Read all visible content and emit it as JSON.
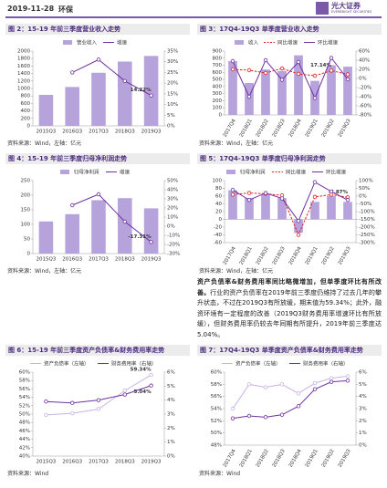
{
  "header": {
    "date": "2019-11-28",
    "sector": "环保",
    "logo": "光大证券",
    "logo_en": "EVERBRIGHT SECURITIES"
  },
  "chart_data": [
    {
      "type": "combo",
      "title": "图 2：15-19 年前三季度营业收入走势",
      "source": "资料来源：Wind，左轴：亿元",
      "categories": [
        "2015Q3",
        "2016Q3",
        "2017Q3",
        "2018Q3",
        "2019Q3"
      ],
      "series": [
        {
          "name": "营业收入",
          "type": "bar",
          "color": "#b7a3db",
          "values": [
            830,
            1040,
            1420,
            1720,
            1870
          ]
        },
        {
          "name": "增速",
          "type": "line",
          "axis": "y2",
          "color": "#7030a0",
          "values": [
            null,
            25,
            31,
            21,
            14.22
          ],
          "value_labels": [
            null,
            null,
            null,
            null,
            "14.22%"
          ]
        }
      ],
      "ylim": [
        0,
        2000
      ],
      "yticks": [
        0,
        200,
        400,
        600,
        800,
        1000,
        1200,
        1400,
        1600,
        1800,
        2000
      ],
      "y2lim": [
        0,
        35
      ],
      "y2ticks": [
        {
          "value": 0,
          "label": "0%"
        },
        {
          "value": 5,
          "label": "5%"
        },
        {
          "value": 10,
          "label": "10%"
        },
        {
          "value": 15,
          "label": "15%"
        },
        {
          "value": 20,
          "label": "20%"
        },
        {
          "value": 25,
          "label": "25%"
        },
        {
          "value": 30,
          "label": "30%"
        },
        {
          "value": 35,
          "label": "35%"
        }
      ]
    },
    {
      "type": "combo",
      "title": "图 3：17Q4-19Q3 单季度营业收入走势",
      "source": "资料来源：Wind，左轴：亿元",
      "categories": [
        "2017Q4",
        "2018Q1",
        "2018Q2",
        "2018Q3",
        "2018Q4",
        "2019Q1",
        "2019Q2",
        "2019Q3"
      ],
      "series": [
        {
          "name": "收入",
          "type": "bar",
          "color": "#b7a3db",
          "values": [
            760,
            450,
            640,
            620,
            840,
            480,
            700,
            680
          ]
        },
        {
          "name": "同比增速",
          "type": "line",
          "axis": "y2",
          "color": "#e02020",
          "line_style": "dashed",
          "values": [
            20,
            18,
            12,
            22,
            10,
            6,
            17.14,
            9
          ],
          "value_labels": [
            null,
            null,
            null,
            null,
            null,
            null,
            "17.14%",
            null
          ]
        },
        {
          "name": "环比增速",
          "type": "line",
          "axis": "y2",
          "color": "#7030a0",
          "values": [
            38,
            -40,
            40,
            -3,
            36,
            -43,
            45,
            -2
          ]
        }
      ],
      "ylim": [
        0,
        900
      ],
      "yticks": [
        0,
        100,
        200,
        300,
        400,
        500,
        600,
        700,
        800,
        900
      ],
      "y2lim": [
        -80,
        60
      ],
      "y2ticks": [
        {
          "value": -80,
          "label": "-80%"
        },
        {
          "value": -60,
          "label": "-60%"
        },
        {
          "value": -40,
          "label": "-40%"
        },
        {
          "value": -20,
          "label": "-20%"
        },
        {
          "value": 0,
          "label": "0%"
        },
        {
          "value": 20,
          "label": "20%"
        },
        {
          "value": 40,
          "label": "40%"
        },
        {
          "value": 60,
          "label": "60%"
        }
      ]
    },
    {
      "type": "combo",
      "title": "图 4：15-19 年前三季度归母净利润走势",
      "source": "资料来源：Wind，左轴：亿元",
      "categories": [
        "2015Q3",
        "2016Q3",
        "2017Q3",
        "2018Q3",
        "2019Q3"
      ],
      "series": [
        {
          "name": "归母净利润",
          "type": "bar",
          "color": "#b7a3db",
          "values": [
            110,
            135,
            183,
            190,
            155
          ]
        },
        {
          "name": "增速",
          "type": "line",
          "axis": "y2",
          "color": "#7030a0",
          "values": [
            null,
            23,
            35,
            5,
            -17.31
          ],
          "value_labels": [
            null,
            null,
            null,
            null,
            "-17.31%"
          ]
        }
      ],
      "ylim": [
        0,
        250
      ],
      "yticks": [
        0,
        50,
        100,
        150,
        200,
        250
      ],
      "y2lim": [
        -30,
        50
      ],
      "y2ticks": [
        {
          "value": -30,
          "label": "-30%"
        },
        {
          "value": -20,
          "label": "-20%"
        },
        {
          "value": -10,
          "label": "-10%"
        },
        {
          "value": 0,
          "label": "0%"
        },
        {
          "value": 10,
          "label": "10%"
        },
        {
          "value": 20,
          "label": "20%"
        },
        {
          "value": 30,
          "label": "30%"
        },
        {
          "value": 40,
          "label": "40%"
        },
        {
          "value": 50,
          "label": "50%"
        }
      ]
    },
    {
      "type": "combo",
      "title": "图 5：17Q4-19Q3 单季度归母净利润走势",
      "source": "资料来源：Wind，左轴：亿元",
      "categories": [
        "2017Q4",
        "2018Q1",
        "2018Q2",
        "2018Q3",
        "2018Q4",
        "2019Q1",
        "2019Q2",
        "2019Q3"
      ],
      "series": [
        {
          "name": "归母净利润",
          "type": "bar",
          "color": "#b7a3db",
          "values": [
            75,
            55,
            65,
            55,
            -35,
            45,
            60,
            45
          ]
        },
        {
          "name": "同比增速",
          "type": "line",
          "axis": "y2",
          "color": "#e02020",
          "line_style": "dashed",
          "values": [
            10,
            20,
            15,
            5,
            -250,
            -5,
            10,
            -7.87
          ],
          "value_labels": [
            null,
            null,
            null,
            null,
            null,
            null,
            null,
            "-7.87%"
          ]
        },
        {
          "name": "环比增速",
          "type": "line",
          "axis": "y2",
          "color": "#7030a0",
          "values": [
            40,
            -25,
            20,
            -15,
            -160,
            90,
            30,
            -25
          ]
        }
      ],
      "ylim": [
        -60,
        100
      ],
      "yticks": [
        -60,
        -40,
        -20,
        0,
        20,
        40,
        60,
        80,
        100
      ],
      "y2lim": [
        -300,
        100
      ],
      "y2ticks": [
        {
          "value": -300,
          "label": "-300%"
        },
        {
          "value": -250,
          "label": "-250%"
        },
        {
          "value": -200,
          "label": "-200%"
        },
        {
          "value": -150,
          "label": "-150%"
        },
        {
          "value": -100,
          "label": "-100%"
        },
        {
          "value": -50,
          "label": "-50%"
        },
        {
          "value": 0,
          "label": "0%"
        },
        {
          "value": 50,
          "label": "50%"
        },
        {
          "value": 100,
          "label": "100%"
        }
      ]
    },
    {
      "type": "combo",
      "title": "图 6：15-19 年前三季度资产负债率&财务费用率走势",
      "source": "资料来源：Wind",
      "categories": [
        "2015Q3",
        "2016Q3",
        "2017Q3",
        "2018Q3",
        "2019Q3"
      ],
      "series": [
        {
          "name": "资产负债率（左轴）",
          "type": "line",
          "color": "#c9b3e6",
          "values": [
            49.8,
            50.2,
            51.2,
            55.6,
            59.34
          ],
          "value_labels": [
            null,
            null,
            null,
            null,
            "59.34%"
          ]
        },
        {
          "name": "财务费用率（右轴）",
          "type": "line",
          "axis": "y2",
          "color": "#7030a0",
          "values": [
            3.9,
            3.8,
            4.0,
            4.4,
            5.04
          ],
          "value_labels": [
            null,
            null,
            null,
            null,
            "5.04%"
          ]
        }
      ],
      "ylim": [
        40,
        60
      ],
      "yticks": [
        {
          "value": 40,
          "label": "40%"
        },
        {
          "value": 42,
          "label": "42%"
        },
        {
          "value": 44,
          "label": "44%"
        },
        {
          "value": 46,
          "label": "46%"
        },
        {
          "value": 48,
          "label": "48%"
        },
        {
          "value": 50,
          "label": "50%"
        },
        {
          "value": 52,
          "label": "52%"
        },
        {
          "value": 54,
          "label": "54%"
        },
        {
          "value": 56,
          "label": "56%"
        },
        {
          "value": 58,
          "label": "58%"
        },
        {
          "value": 60,
          "label": "60%"
        }
      ],
      "y2lim": [
        0,
        6
      ],
      "y2ticks": [
        {
          "value": 0,
          "label": "0%"
        },
        {
          "value": 1,
          "label": "1%"
        },
        {
          "value": 2,
          "label": "2%"
        },
        {
          "value": 3,
          "label": "3%"
        },
        {
          "value": 4,
          "label": "4%"
        },
        {
          "value": 5,
          "label": "5%"
        },
        {
          "value": 6,
          "label": "6%"
        }
      ]
    },
    {
      "type": "combo",
      "title": "图 7：17Q4-19Q3 单季度资产负债率&财务费用率走势",
      "source": "资料来源：Wind",
      "categories": [
        "2017Q4",
        "2018Q1",
        "2018Q2",
        "2018Q3",
        "2018Q4",
        "2019Q1",
        "2019Q2",
        "2019Q3"
      ],
      "series": [
        {
          "name": "资产负债率（左轴）",
          "type": "line",
          "color": "#c9b3e6",
          "values": [
            54,
            58,
            57.5,
            58,
            56.5,
            58.2,
            59,
            59.34
          ]
        },
        {
          "name": "财务费用率（右轴）",
          "type": "line",
          "axis": "y2",
          "color": "#7030a0",
          "values": [
            2.2,
            2.4,
            2.3,
            2.5,
            3.2,
            4.6,
            5.2,
            5.3
          ]
        }
      ],
      "ylim": [
        48,
        60
      ],
      "yticks": [
        {
          "value": 48,
          "label": "48%"
        },
        {
          "value": 50,
          "label": "50%"
        },
        {
          "value": 52,
          "label": "52%"
        },
        {
          "value": 54,
          "label": "54%"
        },
        {
          "value": 56,
          "label": "56%"
        },
        {
          "value": 58,
          "label": "58%"
        },
        {
          "value": 60,
          "label": "60%"
        }
      ],
      "y2lim": [
        0,
        6
      ],
      "y2ticks": [
        {
          "value": 0,
          "label": "0%"
        },
        {
          "value": 1,
          "label": "1%"
        },
        {
          "value": 2,
          "label": "2%"
        },
        {
          "value": 3,
          "label": "3%"
        },
        {
          "value": 4,
          "label": "4%"
        },
        {
          "value": 5,
          "label": "5%"
        },
        {
          "value": 6,
          "label": "6%"
        }
      ]
    }
  ],
  "paragraph": {
    "lead": "资产负债率&财务费用率同比略微增加，但单季度环比有所改善。",
    "body": "行业的资产负债率在2019年前三季度仍维持了过去几年的攀升状态，不过在2019Q3有所放缓，期末值为59.34%；此外，融资环境有一定程度的改善（2019Q3财务费用率增速环比有所放缓），但财务费用率仍较去年同期有所提升，2019年前三季度达5.04%。"
  }
}
